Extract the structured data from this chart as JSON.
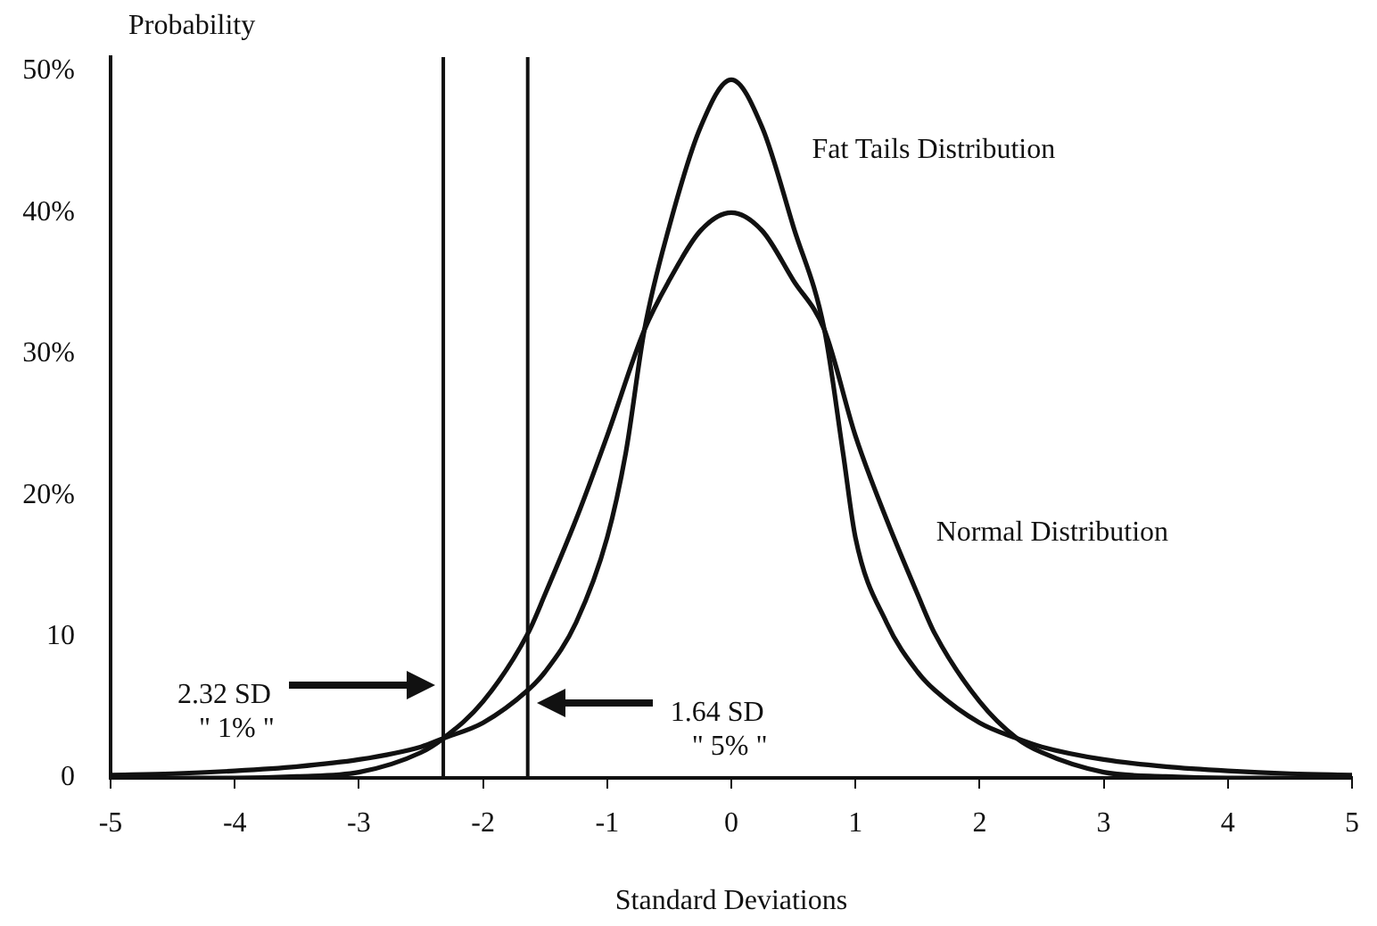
{
  "chart_data": {
    "type": "line",
    "ylabel": "Probability",
    "xlabel": "Standard Deviations",
    "xlim": [
      -5,
      5
    ],
    "xticks": [
      -5,
      -4,
      -3,
      -2,
      -1,
      0,
      1,
      2,
      3,
      4,
      5
    ],
    "ylim": [
      0,
      51
    ],
    "yticks": [
      {
        "value": 0,
        "label": "0"
      },
      {
        "value": 10,
        "label": "10"
      },
      {
        "value": 20,
        "label": "20%"
      },
      {
        "value": 30,
        "label": "30%"
      },
      {
        "value": 40,
        "label": "40%"
      },
      {
        "value": 50,
        "label": "50%"
      }
    ],
    "grid": false,
    "legend": false,
    "marker": "none",
    "line_style": "solid",
    "series": [
      {
        "name": "Normal Distribution",
        "color": "#111111",
        "x": [
          -5,
          -4.5,
          -4,
          -3.5,
          -3,
          -2.5,
          -2.32,
          -2,
          -1.64,
          -1.5,
          -1.25,
          -1,
          -0.7,
          -0.5,
          -0.25,
          0,
          0.25,
          0.5,
          0.75,
          1,
          1.25,
          1.5,
          1.64,
          2,
          2.3,
          2.5,
          3,
          3.5,
          4,
          4.5,
          5
        ],
        "values": [
          0,
          0,
          0,
          0.1,
          0.4,
          1.8,
          2.8,
          5.4,
          10.2,
          13,
          18.3,
          24.2,
          31.7,
          35.2,
          38.7,
          40,
          38.7,
          35.2,
          31.7,
          24.2,
          18.3,
          13,
          10.2,
          5.4,
          2.8,
          1.8,
          0.4,
          0.1,
          0,
          0,
          0
        ]
      },
      {
        "name": "Fat Tails Distribution",
        "color": "#111111",
        "x": [
          -5,
          -4.5,
          -4,
          -3.5,
          -3,
          -2.5,
          -2.32,
          -2,
          -1.64,
          -1.5,
          -1.25,
          -1,
          -0.85,
          -0.7,
          -0.5,
          -0.25,
          0,
          0.25,
          0.5,
          0.75,
          0.9,
          1,
          1.25,
          1.5,
          1.64,
          2,
          2.3,
          2.5,
          3,
          3.5,
          4,
          4.5,
          5
        ],
        "values": [
          0.2,
          0.3,
          0.5,
          0.8,
          1.3,
          2.2,
          2.8,
          3.9,
          6.2,
          7.5,
          11,
          17,
          23,
          31.7,
          39,
          46,
          49.4,
          46,
          39,
          31.7,
          23,
          17,
          11,
          7.5,
          6.2,
          3.9,
          2.8,
          2.2,
          1.3,
          0.8,
          0.5,
          0.3,
          0.2
        ]
      }
    ],
    "ref_lines": [
      {
        "axis": "x",
        "value": -2.32,
        "color": "#111111"
      },
      {
        "axis": "x",
        "value": -1.64,
        "color": "#111111"
      }
    ],
    "annotations": [
      "2.32 SD\n\" 1% \"",
      "1.64 SD\n\" 5% \""
    ]
  }
}
